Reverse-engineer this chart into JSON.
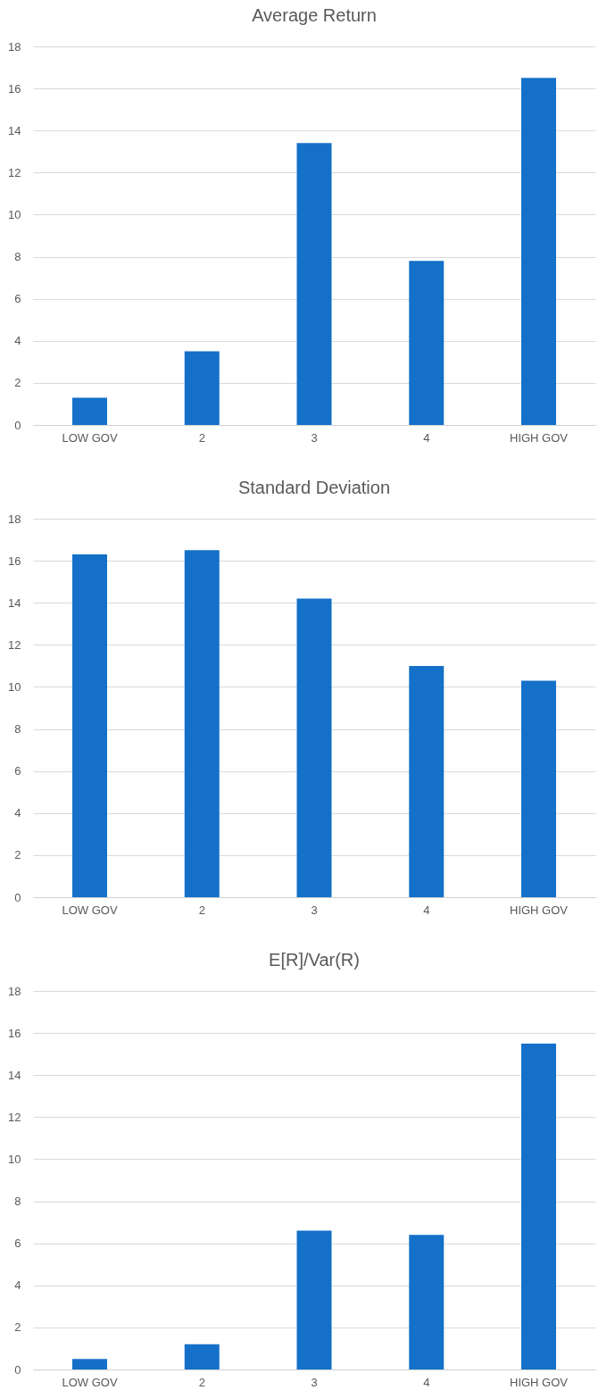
{
  "chart_data": [
    {
      "type": "bar",
      "title": "Average Return",
      "categories": [
        "LOW GOV",
        "2",
        "3",
        "4",
        "HIGH GOV"
      ],
      "values": [
        1.3,
        3.5,
        13.4,
        7.8,
        16.5
      ],
      "color": "#1470c8",
      "ylim": [
        0,
        18
      ],
      "yticks": [
        0,
        2,
        4,
        6,
        8,
        10,
        12,
        14,
        16,
        18
      ],
      "grid": "y"
    },
    {
      "type": "bar",
      "title": "Standard Deviation",
      "categories": [
        "LOW GOV",
        "2",
        "3",
        "4",
        "HIGH GOV"
      ],
      "values": [
        16.3,
        16.5,
        14.2,
        11.0,
        10.3
      ],
      "color": "#1470c8",
      "ylim": [
        0,
        18
      ],
      "yticks": [
        0,
        2,
        4,
        6,
        8,
        10,
        12,
        14,
        16,
        18
      ],
      "grid": "y"
    },
    {
      "type": "bar",
      "title": "E[R]/Var(R)",
      "categories": [
        "LOW GOV",
        "2",
        "3",
        "4",
        "HIGH GOV"
      ],
      "values": [
        0.5,
        1.2,
        6.6,
        6.4,
        15.5
      ],
      "color": "#1470c8",
      "ylim": [
        0,
        18
      ],
      "yticks": [
        0,
        2,
        4,
        6,
        8,
        10,
        12,
        14,
        16,
        18
      ],
      "grid": "y"
    }
  ]
}
